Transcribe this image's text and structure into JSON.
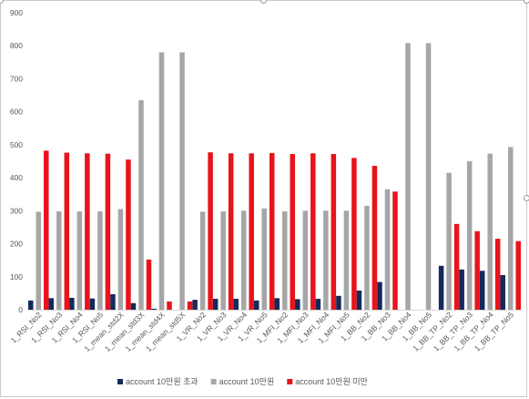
{
  "chart_data": {
    "type": "bar",
    "title": "",
    "xlabel": "",
    "ylabel": "",
    "ylim": [
      0,
      900
    ],
    "yticks": [
      0,
      100,
      200,
      300,
      400,
      500,
      600,
      700,
      800,
      900
    ],
    "grid": false,
    "legend_position": "bottom",
    "categories": [
      "1_RSI_No2",
      "1_RSI_No3",
      "1_RSI_No4",
      "1_RSI_No5",
      "1_mean_std2X",
      "1_mean_std3X",
      "1_mean_std4X",
      "1_mean_std5X",
      "1_VR_No2",
      "1_VR_No3",
      "1_VR_No4",
      "1_VR_No5",
      "1_MFI_No2",
      "1_MFI_No3",
      "1_MFI_No4",
      "1_MFI_No5",
      "1_BB_No2",
      "1_BB_No3",
      "1_BB_No4",
      "1_BB_No5",
      "1_BB_TP_No2",
      "1_BB_TP_No3",
      "1_BB_TP_No4",
      "1_BB_TP_No5"
    ],
    "series": [
      {
        "name": "account 10만원 초과",
        "color": "#14295c",
        "values": [
          28,
          35,
          36,
          34,
          47,
          20,
          3,
          0,
          30,
          33,
          33,
          28,
          35,
          32,
          33,
          42,
          58,
          84,
          0,
          0,
          133,
          122,
          118,
          105
        ]
      },
      {
        "name": "account 10만원",
        "color": "#a6a6a6",
        "values": [
          297,
          298,
          298,
          298,
          305,
          635,
          780,
          780,
          297,
          298,
          300,
          307,
          298,
          300,
          300,
          300,
          315,
          365,
          808,
          808,
          415,
          450,
          473,
          493
        ]
      },
      {
        "name": "account 10만원 미만",
        "color": "#e8141c",
        "values": [
          482,
          476,
          474,
          473,
          455,
          152,
          25,
          25,
          477,
          474,
          474,
          475,
          472,
          474,
          472,
          460,
          436,
          358,
          0,
          0,
          260,
          238,
          215,
          208
        ]
      }
    ]
  }
}
